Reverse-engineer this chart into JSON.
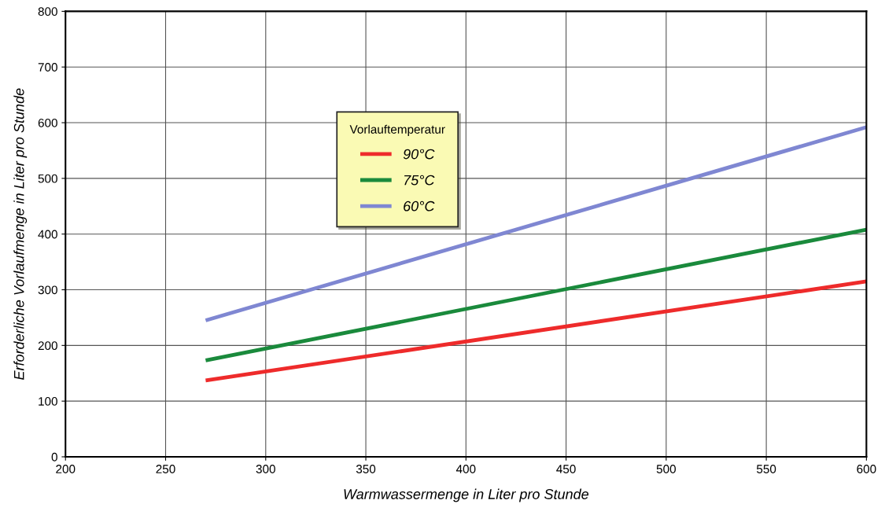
{
  "chart_data": {
    "type": "line",
    "xlabel": "Warmwassermenge in Liter pro Stunde",
    "ylabel": "Erforderliche Vorlaufmenge in Liter pro Stunde",
    "legend_title": "Vorlauftemperatur",
    "legend": "top left",
    "grid": true,
    "xlim": [
      200,
      600
    ],
    "ylim": [
      0,
      800
    ],
    "xticks": [
      200,
      250,
      300,
      350,
      400,
      450,
      500,
      550,
      600
    ],
    "yticks": [
      0,
      100,
      200,
      300,
      400,
      500,
      600,
      700,
      800
    ],
    "x": [
      270,
      600
    ],
    "series": [
      {
        "name": "90°C",
        "color": "#ee2b2b",
        "values": [
          137,
          315
        ]
      },
      {
        "name": "75°C",
        "color": "#1a8a3c",
        "values": [
          173,
          408
        ]
      },
      {
        "name": "60°C",
        "color": "#7f87d2",
        "values": [
          245,
          592
        ]
      }
    ]
  }
}
